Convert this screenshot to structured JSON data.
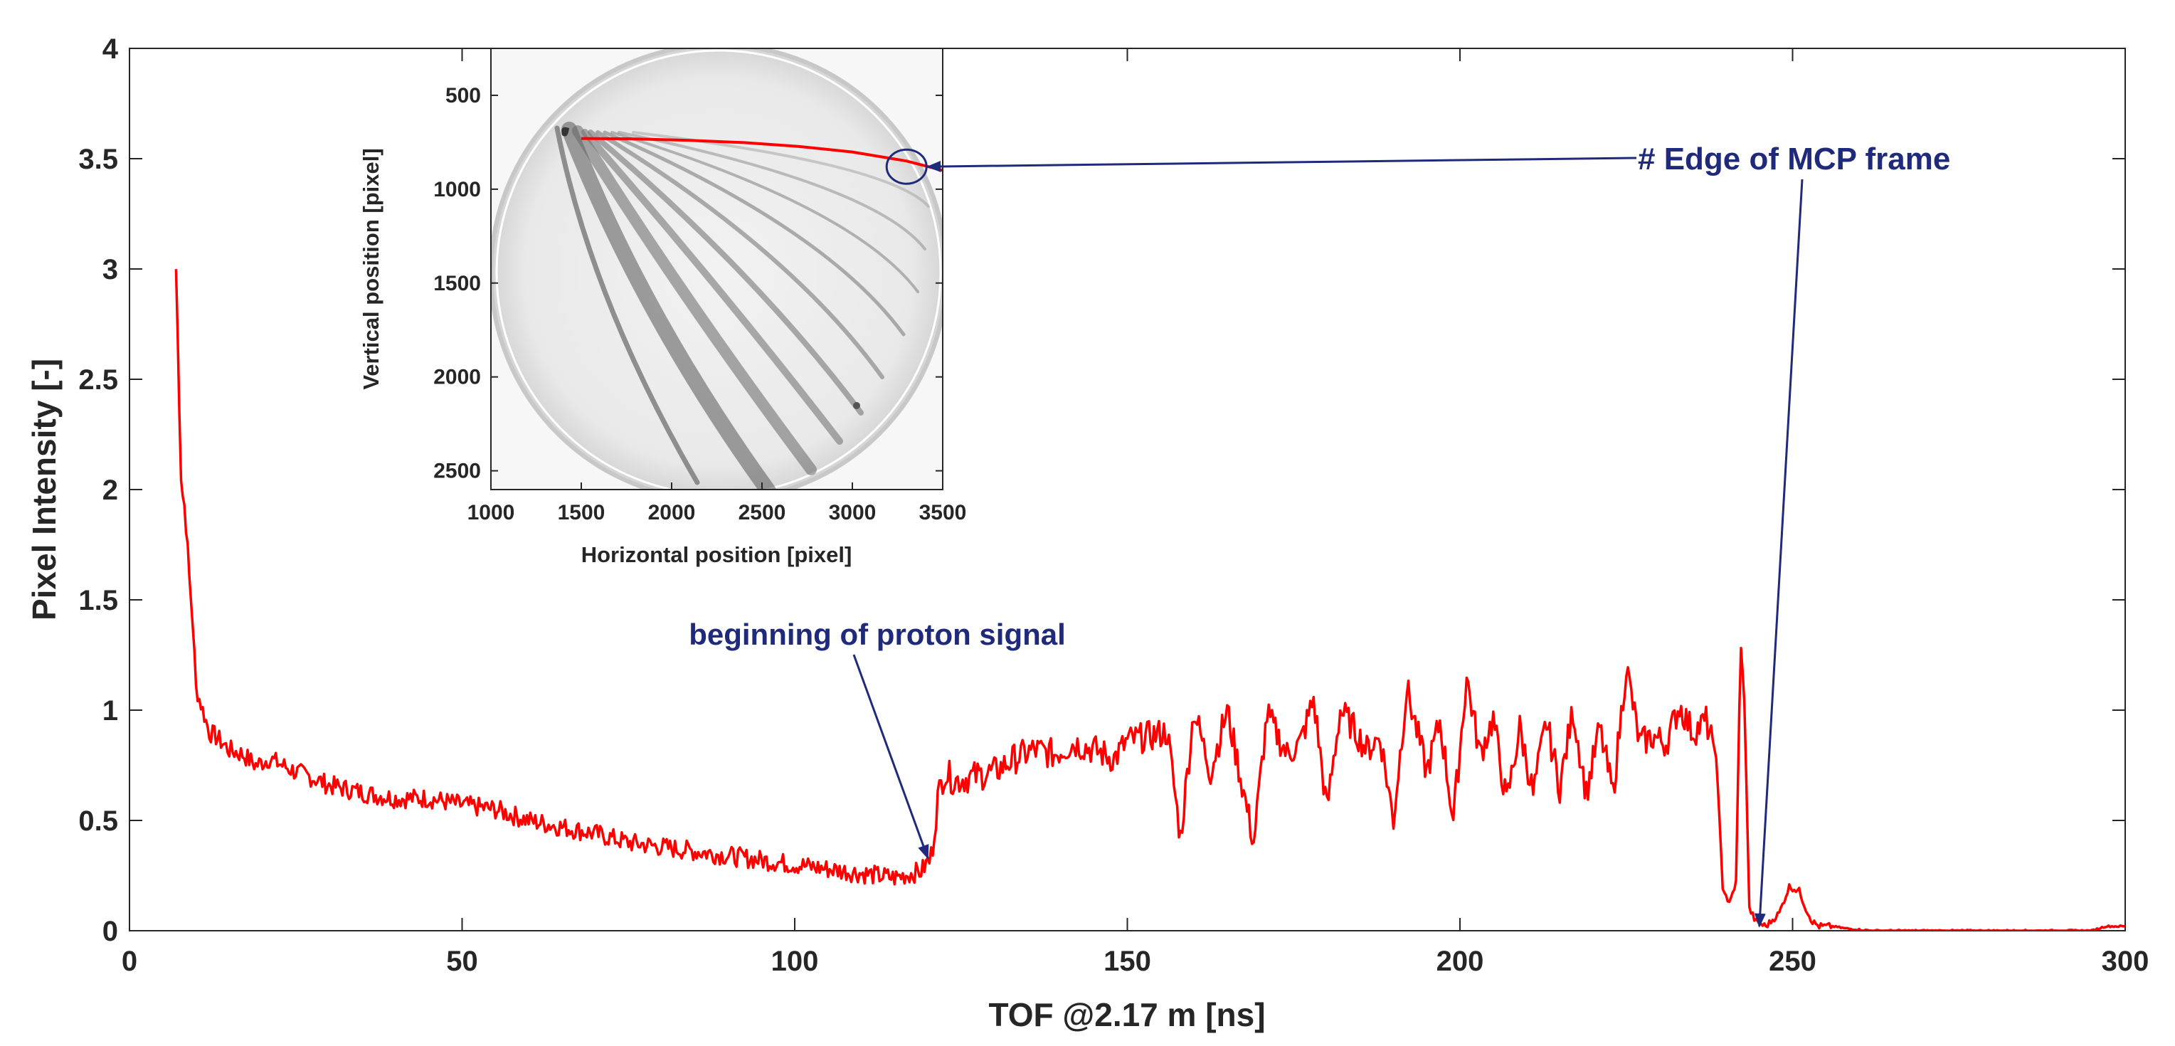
{
  "chart_data": [
    {
      "type": "line",
      "xlabel": "TOF @2.17 m [ns]",
      "ylabel": "Pixel Intensity [-]",
      "xlim": [
        0,
        300
      ],
      "ylim": [
        0,
        4
      ],
      "xticks": [
        0,
        50,
        100,
        150,
        200,
        250,
        300
      ],
      "yticks": [
        0,
        0.5,
        1,
        1.5,
        2,
        2.5,
        3,
        3.5,
        4
      ],
      "xtick_labels": [
        "0",
        "50",
        "100",
        "150",
        "200",
        "250",
        "300"
      ],
      "ytick_labels": [
        "0",
        "0.5",
        "1",
        "1.5",
        "2",
        "2.5",
        "3",
        "3.5",
        "4"
      ],
      "line_color": "#ff0000",
      "series": [
        {
          "name": "Pixel intensity",
          "x": [
            7,
            7.4,
            7.8,
            8.2,
            8.6,
            9,
            9.5,
            10,
            11,
            12,
            13,
            14,
            15,
            17,
            19,
            21,
            23,
            25,
            27,
            30,
            33,
            36,
            40,
            45,
            50,
            55,
            60,
            65,
            70,
            75,
            80,
            85,
            90,
            95,
            100,
            105,
            110,
            115,
            119,
            120.5,
            121.5,
            122.5,
            124,
            127,
            130,
            133,
            136,
            139,
            142,
            145,
            148,
            150,
            153,
            156,
            158,
            160,
            162.5,
            165,
            167,
            169,
            171,
            174,
            176,
            178,
            180,
            182,
            184,
            186,
            188,
            190,
            192,
            195,
            197,
            199,
            201,
            203,
            205,
            207,
            209,
            211,
            213,
            215,
            217,
            219,
            221,
            223,
            225,
            227,
            229,
            231,
            233,
            235,
            237,
            238.5,
            239.5,
            240.5,
            241.5,
            242.2,
            242.8,
            243.5,
            244.5,
            246,
            248,
            249.5,
            251,
            252,
            253,
            254,
            256,
            258,
            262,
            270,
            280,
            290,
            295,
            297,
            300
          ],
          "y": [
            3,
            2.5,
            2.0,
            1.95,
            1.8,
            1.6,
            1.4,
            1.1,
            1.0,
            0.9,
            0.88,
            0.85,
            0.82,
            0.8,
            0.75,
            0.78,
            0.75,
            0.72,
            0.7,
            0.66,
            0.64,
            0.62,
            0.6,
            0.6,
            0.57,
            0.55,
            0.5,
            0.47,
            0.44,
            0.4,
            0.38,
            0.36,
            0.34,
            0.32,
            0.3,
            0.28,
            0.26,
            0.24,
            0.27,
            0.33,
            0.6,
            0.72,
            0.68,
            0.7,
            0.72,
            0.78,
            0.82,
            0.8,
            0.85,
            0.82,
            0.78,
            0.86,
            0.88,
            0.9,
            0.42,
            1.0,
            0.72,
            1.0,
            0.7,
            0.4,
            0.98,
            0.8,
            0.85,
            1.05,
            0.55,
            1.0,
            0.92,
            0.82,
            0.88,
            0.5,
            1.1,
            0.72,
            0.95,
            0.5,
            1.15,
            0.8,
            0.96,
            0.58,
            0.92,
            0.62,
            0.95,
            0.65,
            1.0,
            0.62,
            0.92,
            0.62,
            1.2,
            0.85,
            0.88,
            0.85,
            1.02,
            0.9,
            0.95,
            0.8,
            0.2,
            0.12,
            0.22,
            1.32,
            1.0,
            0.1,
            0.04,
            0.02,
            0.08,
            0.2,
            0.18,
            0.1,
            0.04,
            0.02,
            0.02,
            0.01,
            0.0,
            0.0,
            0.0,
            0.0,
            0.0,
            0.02,
            0.02
          ]
        }
      ],
      "annotations": [
        {
          "text": "beginning of proton signal",
          "target": [
            120,
            0.33
          ],
          "color": "#1f2a7a"
        },
        {
          "text": "#  Edge of MCP frame",
          "target": [
            245,
            0.02
          ],
          "color": "#1f2a7a"
        }
      ]
    },
    {
      "type": "image",
      "title": "",
      "xlabel": "Horizontal position [pixel]",
      "ylabel": "Vertical position [pixel]",
      "xlim": [
        1000,
        3500
      ],
      "ylim": [
        2600,
        250
      ],
      "xticks": [
        1000,
        1500,
        2000,
        2500,
        3000,
        3500
      ],
      "yticks": [
        500,
        1000,
        1500,
        2000,
        2500
      ],
      "xtick_labels": [
        "1000",
        "1500",
        "2000",
        "2500",
        "3000",
        "3500"
      ],
      "ytick_labels": [
        "500",
        "1000",
        "1500",
        "2000",
        "2500"
      ],
      "fit_curve": {
        "x": [
          1500,
          1800,
          2100,
          2400,
          2700,
          3000,
          3300,
          3500
        ],
        "y": [
          730,
          732,
          740,
          752,
          772,
          802,
          850,
          900
        ]
      },
      "marker": {
        "x": 3300,
        "y": 880,
        "shape": "ellipse"
      },
      "line_color": "#ff0000"
    }
  ]
}
